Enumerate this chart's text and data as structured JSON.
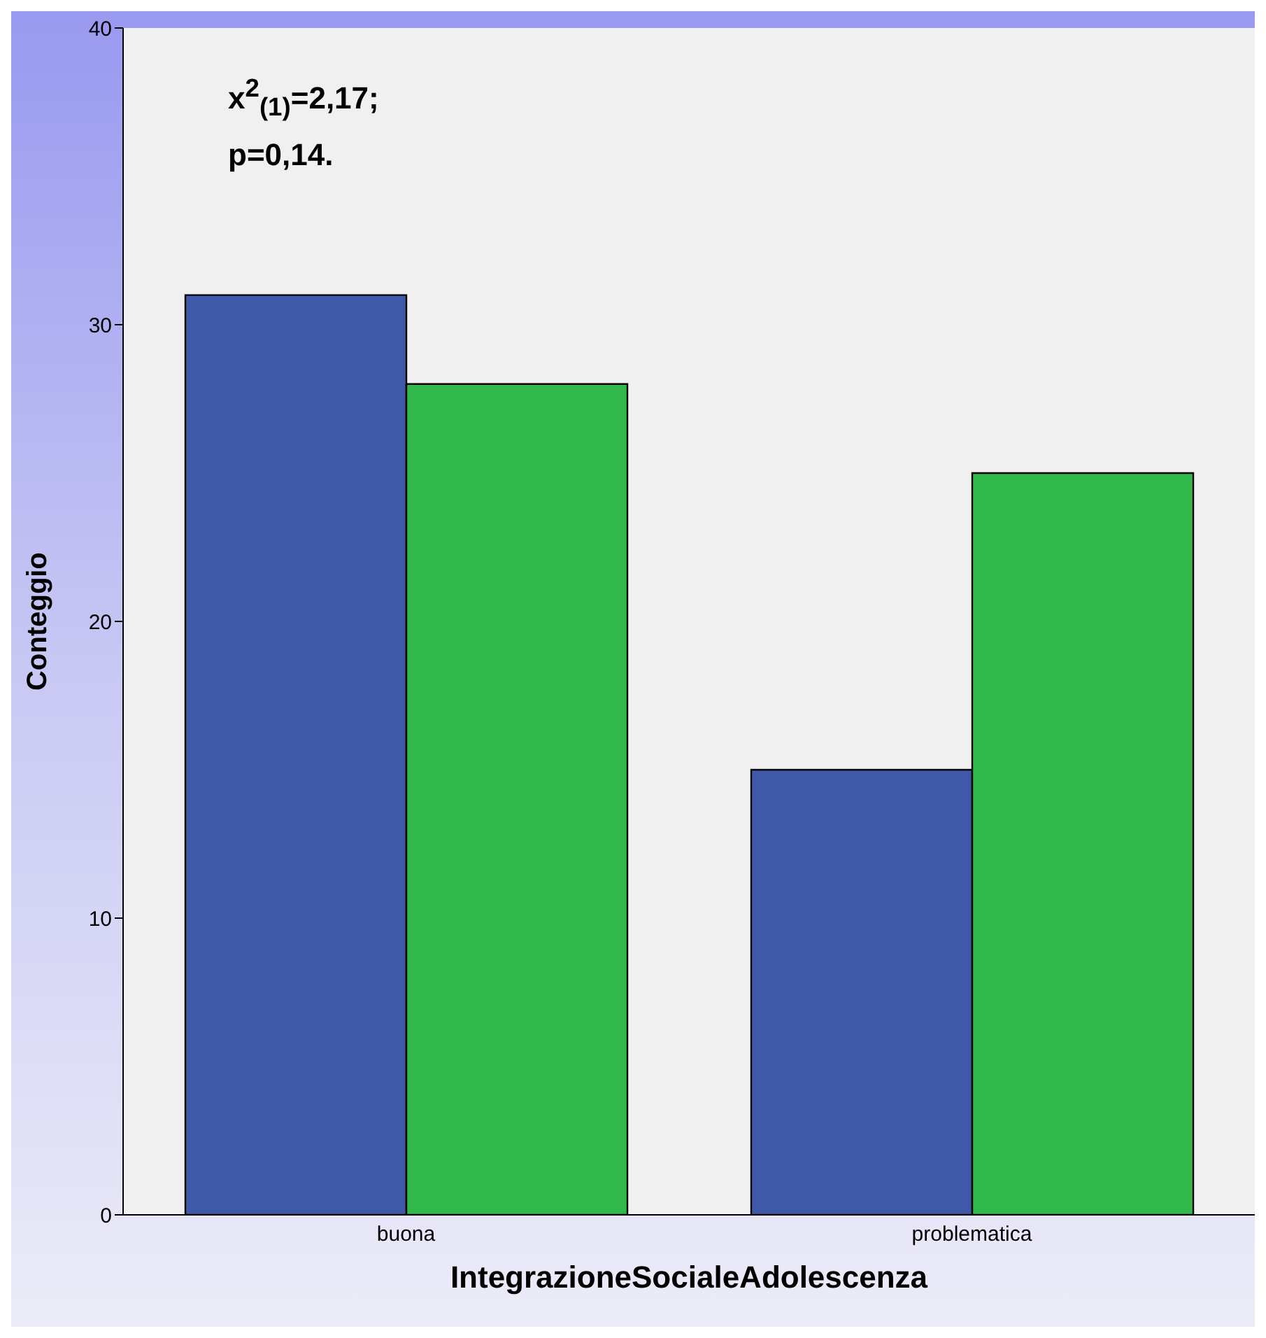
{
  "chart_data": {
    "type": "bar",
    "xlabel": "IntegrazioneSocialeAdolescenza",
    "ylabel": "Conteggio",
    "categories": [
      "buona",
      "problematica"
    ],
    "series": [
      {
        "color": "#3f58a8",
        "values": [
          31,
          15
        ]
      },
      {
        "color": "#30b84a",
        "values": [
          28,
          25
        ]
      }
    ],
    "ylim": [
      0,
      40
    ],
    "yticks": [
      0,
      10,
      20,
      30,
      40
    ],
    "grid": false,
    "annotations": [
      "x$^{2}$$_{(1)}$=2,17;",
      "p=0,14."
    ]
  }
}
